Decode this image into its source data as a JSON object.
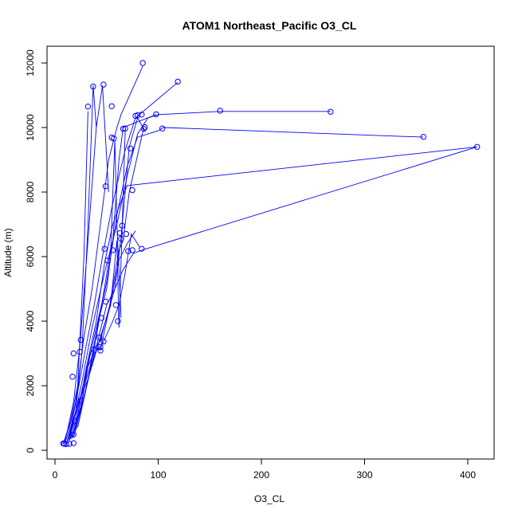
{
  "chart_data": {
    "type": "line",
    "title": "ATOM1 Northeast_Pacific O3_CL",
    "xlabel": "O3_CL",
    "ylabel": "Altitude (m)",
    "xlim": [
      0,
      410
    ],
    "ylim": [
      0,
      12000
    ],
    "x_ticks": [
      0,
      100,
      200,
      300,
      400
    ],
    "y_ticks": [
      0,
      2000,
      4000,
      6000,
      8000,
      10000,
      12000
    ],
    "grid": false,
    "legend": "none",
    "color": "#0000ff",
    "marker": "open-circle",
    "series": [
      {
        "x": [
          8,
          10,
          15,
          22,
          28,
          32
        ],
        "y": [
          200,
          400,
          900,
          2000,
          6000,
          10500
        ]
      },
      {
        "x": [
          11,
          14,
          20,
          26,
          32,
          37,
          40
        ],
        "y": [
          200,
          500,
          1200,
          3000,
          7000,
          11300,
          10000
        ]
      },
      {
        "x": [
          9,
          12,
          18,
          24,
          32,
          40,
          46,
          52
        ],
        "y": [
          200,
          600,
          1500,
          3200,
          6500,
          10000,
          11300,
          8000
        ]
      },
      {
        "x": [
          10,
          14,
          20,
          28,
          36,
          44,
          52,
          60,
          64,
          85
        ],
        "y": [
          250,
          700,
          1500,
          3500,
          5000,
          7000,
          9000,
          10000,
          10400,
          11900
        ]
      },
      {
        "x": [
          12,
          16,
          22,
          30,
          38,
          46,
          55,
          62,
          68,
          78,
          119
        ],
        "y": [
          300,
          800,
          1800,
          3200,
          4500,
          6000,
          7500,
          8500,
          9300,
          10300,
          11400
        ]
      },
      {
        "x": [
          14,
          18,
          26,
          36,
          48,
          60,
          70,
          80,
          90,
          100,
          160,
          267
        ],
        "y": [
          300,
          900,
          2100,
          3800,
          5500,
          7000,
          8500,
          9800,
          10300,
          10400,
          10500,
          10500
        ]
      },
      {
        "x": [
          13,
          20,
          30,
          40,
          50,
          55,
          60,
          70,
          80,
          100,
          105,
          357
        ],
        "y": [
          300,
          1000,
          2400,
          3800,
          5200,
          6200,
          7300,
          8800,
          9700,
          9900,
          10000,
          9700
        ]
      },
      {
        "x": [
          15,
          22,
          30,
          40,
          48,
          56,
          65,
          70,
          409
        ],
        "y": [
          350,
          1100,
          2500,
          4000,
          5800,
          7000,
          7800,
          8200,
          9400
        ]
      },
      {
        "x": [
          16,
          24,
          32,
          40,
          50,
          58,
          66,
          76,
          84,
          409
        ],
        "y": [
          350,
          1200,
          2600,
          3200,
          4500,
          5000,
          5600,
          6100,
          6200,
          9400
        ]
      },
      {
        "x": [
          17,
          26,
          34,
          44,
          54,
          62,
          70,
          78
        ],
        "y": [
          400,
          1500,
          3000,
          3400,
          4600,
          5900,
          6400,
          6800
        ]
      },
      {
        "x": [
          18,
          28,
          38,
          46,
          56,
          62,
          68,
          74,
          82
        ],
        "y": [
          400,
          1600,
          3000,
          3300,
          4000,
          4500,
          5500,
          6700,
          6300
        ]
      },
      {
        "x": [
          19,
          26,
          36,
          44,
          52,
          62,
          66,
          72,
          86
        ],
        "y": [
          500,
          1800,
          3200,
          3100,
          4300,
          6200,
          6500,
          8000,
          10000
        ]
      },
      {
        "x": [
          14,
          18,
          24,
          32,
          40,
          54,
          58,
          60,
          64
        ],
        "y": [
          400,
          1000,
          1600,
          2200,
          3500,
          6200,
          9600,
          7000,
          4100
        ]
      },
      {
        "x": [
          12,
          16,
          22,
          34,
          42,
          50,
          56,
          62,
          66,
          98
        ],
        "y": [
          300,
          800,
          1300,
          2600,
          4000,
          5000,
          6500,
          9000,
          10000,
          10400
        ]
      },
      {
        "x": [
          20,
          32,
          44,
          54,
          60,
          62,
          68
        ],
        "y": [
          600,
          2200,
          3500,
          4500,
          6500,
          3800,
          9900
        ]
      },
      {
        "x": [
          22,
          34,
          48,
          58,
          64,
          72,
          80,
          87
        ],
        "y": [
          700,
          2500,
          3900,
          5000,
          6600,
          9400,
          10300,
          9900
        ]
      }
    ],
    "points": [
      {
        "x": 85,
        "y": 12000
      },
      {
        "x": 119,
        "y": 11420
      },
      {
        "x": 37,
        "y": 11270
      },
      {
        "x": 47,
        "y": 11330
      },
      {
        "x": 32,
        "y": 10650
      },
      {
        "x": 55,
        "y": 10660
      },
      {
        "x": 160,
        "y": 10520
      },
      {
        "x": 267,
        "y": 10490
      },
      {
        "x": 80,
        "y": 10380
      },
      {
        "x": 84,
        "y": 10400
      },
      {
        "x": 98,
        "y": 10410
      },
      {
        "x": 78,
        "y": 10360
      },
      {
        "x": 66,
        "y": 9960
      },
      {
        "x": 68,
        "y": 9970
      },
      {
        "x": 86,
        "y": 9960
      },
      {
        "x": 87,
        "y": 10010
      },
      {
        "x": 104,
        "y": 9970
      },
      {
        "x": 55,
        "y": 9690
      },
      {
        "x": 57,
        "y": 9660
      },
      {
        "x": 357,
        "y": 9710
      },
      {
        "x": 409,
        "y": 9400
      },
      {
        "x": 73,
        "y": 9350
      },
      {
        "x": 49,
        "y": 8180
      },
      {
        "x": 75,
        "y": 8060
      },
      {
        "x": 65,
        "y": 6960
      },
      {
        "x": 63,
        "y": 6730
      },
      {
        "x": 69,
        "y": 6700
      },
      {
        "x": 64,
        "y": 6550
      },
      {
        "x": 48,
        "y": 6240
      },
      {
        "x": 56,
        "y": 6200
      },
      {
        "x": 71,
        "y": 6170
      },
      {
        "x": 75,
        "y": 6200
      },
      {
        "x": 84,
        "y": 6240
      },
      {
        "x": 51,
        "y": 5880
      },
      {
        "x": 49,
        "y": 4610
      },
      {
        "x": 59,
        "y": 4500
      },
      {
        "x": 61,
        "y": 4000
      },
      {
        "x": 45,
        "y": 4100
      },
      {
        "x": 43,
        "y": 3500
      },
      {
        "x": 47,
        "y": 3370
      },
      {
        "x": 44,
        "y": 3200
      },
      {
        "x": 44,
        "y": 3090
      },
      {
        "x": 25,
        "y": 3420
      },
      {
        "x": 18,
        "y": 3000
      },
      {
        "x": 24,
        "y": 3050
      },
      {
        "x": 17,
        "y": 2280
      },
      {
        "x": 25,
        "y": 1540
      },
      {
        "x": 19,
        "y": 900
      },
      {
        "x": 18,
        "y": 490
      },
      {
        "x": 18,
        "y": 220
      },
      {
        "x": 9,
        "y": 200
      },
      {
        "x": 11,
        "y": 190
      },
      {
        "x": 14,
        "y": 200
      },
      {
        "x": 8,
        "y": 210
      }
    ]
  }
}
